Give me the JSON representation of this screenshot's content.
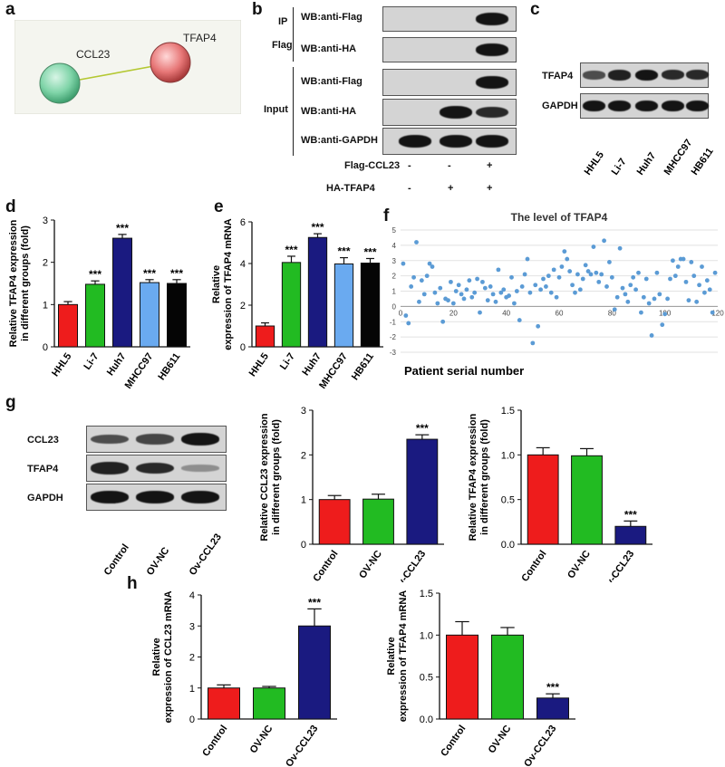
{
  "panel_letters": [
    "a",
    "b",
    "c",
    "d",
    "e",
    "f",
    "g",
    "h"
  ],
  "network": {
    "nodes": [
      "CCL23",
      "TFAP4"
    ]
  },
  "coip": {
    "group_labels": [
      "IP",
      "Flag",
      "Input"
    ],
    "rows": [
      "WB:anti-Flag",
      "WB:anti-HA",
      "WB:anti-Flag",
      "WB:anti-HA",
      "WB:anti-GAPDH"
    ],
    "conditions": [
      {
        "label": "Flag-CCL23",
        "values": [
          "-",
          "-",
          "+"
        ]
      },
      {
        "label": "HA-TFAP4",
        "values": [
          "-",
          "+",
          "+"
        ]
      }
    ],
    "band_levels": [
      [
        0,
        0,
        1
      ],
      [
        0,
        0,
        1
      ],
      [
        0,
        0,
        1
      ],
      [
        0,
        1,
        0.85
      ],
      [
        1,
        1,
        1
      ]
    ]
  },
  "blot_c": {
    "rows": [
      "TFAP4",
      "GAPDH"
    ],
    "lanes": [
      "HHL5",
      "Li-7",
      "Huh7",
      "MHCC97",
      "HB611"
    ],
    "band_levels": [
      [
        0.6,
        0.9,
        1,
        0.85,
        0.85
      ],
      [
        1,
        1,
        1,
        1,
        1
      ]
    ]
  },
  "blot_g": {
    "rows": [
      "CCL23",
      "TFAP4",
      "GAPDH"
    ],
    "lanes": [
      "Control",
      "OV-NC",
      "Ov-CCL23"
    ],
    "band_levels": [
      [
        0.6,
        0.65,
        1
      ],
      [
        0.9,
        0.85,
        0.15
      ],
      [
        1,
        1,
        1
      ]
    ]
  },
  "chart_data": [
    {
      "id": "d",
      "type": "bar",
      "categories": [
        "HHL5",
        "Li-7",
        "Huh7",
        "MHCC97",
        "HB611"
      ],
      "values": [
        1.0,
        1.48,
        2.57,
        1.52,
        1.5
      ],
      "errors": [
        0.07,
        0.08,
        0.09,
        0.07,
        0.09
      ],
      "significance": [
        "",
        "***",
        "***",
        "***",
        "***"
      ],
      "ylabel": "Relative TFAP4 expression in different groups (fold)",
      "ylim": [
        0,
        3
      ],
      "yticks": [
        "0",
        "1",
        "2",
        "3"
      ],
      "colors": [
        "#ee1c1c",
        "#22bb22",
        "#1a1a80",
        "#6aaaf0",
        "#050505"
      ]
    },
    {
      "id": "e",
      "type": "bar",
      "categories": [
        "HHL5",
        "Li-7",
        "Huh7",
        "MHCC97",
        "HB611"
      ],
      "values": [
        1.0,
        4.05,
        5.25,
        3.98,
        4.02
      ],
      "errors": [
        0.15,
        0.3,
        0.18,
        0.3,
        0.22
      ],
      "significance": [
        "",
        "***",
        "***",
        "***",
        "***"
      ],
      "ylabel": "Relative expression of TFAP4 mRNA",
      "ylim": [
        0,
        6
      ],
      "yticks": [
        "0",
        "2",
        "4",
        "6"
      ],
      "colors": [
        "#ee1c1c",
        "#22bb22",
        "#1a1a80",
        "#6aaaf0",
        "#050505"
      ]
    },
    {
      "id": "f",
      "type": "scatter",
      "title": "The level of TFAP4",
      "xlabel": "Patient serial number",
      "xlim": [
        0,
        120
      ],
      "ylim": [
        -3,
        5
      ],
      "xticks": [
        "0",
        "20",
        "40",
        "60",
        "80",
        "100",
        "120"
      ],
      "yticks": [
        "-3",
        "-2",
        "-1",
        "0",
        "1",
        "2",
        "3",
        "4",
        "5"
      ],
      "x": [
        1,
        2,
        3,
        4,
        5,
        6,
        7,
        8,
        9,
        10,
        11,
        12,
        13,
        14,
        15,
        16,
        17,
        18,
        19,
        20,
        21,
        22,
        23,
        24,
        25,
        26,
        27,
        28,
        29,
        30,
        31,
        32,
        33,
        34,
        35,
        36,
        37,
        38,
        39,
        40,
        41,
        42,
        43,
        44,
        45,
        46,
        47,
        48,
        49,
        50,
        51,
        52,
        53,
        54,
        55,
        56,
        57,
        58,
        59,
        60,
        61,
        62,
        63,
        64,
        65,
        66,
        67,
        68,
        69,
        70,
        71,
        72,
        73,
        74,
        75,
        76,
        77,
        78,
        79,
        80,
        81,
        82,
        83,
        84,
        85,
        86,
        87,
        88,
        89,
        90,
        91,
        92,
        93,
        94,
        95,
        96,
        97,
        98,
        99,
        100,
        101,
        102,
        103,
        104,
        105,
        106,
        107,
        108,
        109,
        110,
        111,
        112,
        113,
        114,
        115,
        116,
        117,
        118,
        119
      ],
      "y": [
        2.8,
        -0.6,
        -1.1,
        1.3,
        1.9,
        4.2,
        0.3,
        1.7,
        0.8,
        2.0,
        2.8,
        2.6,
        0.9,
        0.2,
        1.2,
        -1.0,
        0.5,
        0.4,
        1.6,
        0.2,
        1.0,
        1.4,
        0.8,
        0.5,
        1.1,
        1.7,
        0.6,
        0.9,
        1.8,
        -0.4,
        1.6,
        1.2,
        0.4,
        1.3,
        0.8,
        0.3,
        2.4,
        0.9,
        1.1,
        0.6,
        0.7,
        1.9,
        0.2,
        1.0,
        -0.9,
        1.3,
        2.1,
        3.1,
        0.9,
        -2.4,
        1.4,
        -1.3,
        1.1,
        1.8,
        1.3,
        2.0,
        0.9,
        2.4,
        0.6,
        1.9,
        2.6,
        3.6,
        3.1,
        2.3,
        1.4,
        0.9,
        2.1,
        1.1,
        1.8,
        2.7,
        2.3,
        2.1,
        3.9,
        2.2,
        1.6,
        2.1,
        4.3,
        1.3,
        2.9,
        1.9,
        -0.2,
        0.6,
        3.8,
        1.2,
        0.8,
        0.3,
        1.4,
        1.9,
        1.1,
        2.2,
        -0.4,
        0.6,
        1.8,
        0.2,
        -1.9,
        0.5,
        2.2,
        0.8,
        -1.2,
        -0.5,
        0.5,
        1.8,
        3.0,
        2.0,
        2.6,
        3.1,
        3.1,
        1.6,
        0.4,
        2.9,
        2.0,
        0.3,
        1.4,
        2.6,
        0.9,
        1.7,
        1.1,
        -0.4,
        2.2
      ],
      "color": "#5b9bd5"
    },
    {
      "id": "g2",
      "type": "bar",
      "categories": [
        "Control",
        "OV-NC",
        "Ov-CCL23"
      ],
      "values": [
        1.0,
        1.01,
        2.35
      ],
      "errors": [
        0.09,
        0.11,
        0.1
      ],
      "significance": [
        "",
        "",
        "***"
      ],
      "ylabel": "Relative CCL23 expression in different groups (fold)",
      "ylim": [
        0,
        3
      ],
      "yticks": [
        "0",
        "1",
        "2",
        "3"
      ],
      "colors": [
        "#ee1c1c",
        "#22bb22",
        "#1a1a80"
      ]
    },
    {
      "id": "g3",
      "type": "bar",
      "categories": [
        "Control",
        "OV-NC",
        "Ov-CCL23"
      ],
      "values": [
        1.0,
        0.99,
        0.2
      ],
      "errors": [
        0.08,
        0.08,
        0.06
      ],
      "significance": [
        "",
        "",
        "***"
      ],
      "ylabel": "Relative TFAP4 expression in different groups (fold)",
      "ylim": [
        0,
        1.5
      ],
      "yticks": [
        "0.0",
        "0.5",
        "1.0",
        "1.5"
      ],
      "colors": [
        "#ee1c1c",
        "#22bb22",
        "#1a1a80"
      ]
    },
    {
      "id": "h1",
      "type": "bar",
      "categories": [
        "Control",
        "OV-NC",
        "Ov-CCL23"
      ],
      "values": [
        1.0,
        1.0,
        3.0
      ],
      "errors": [
        0.1,
        0.05,
        0.55
      ],
      "significance": [
        "",
        "",
        "***"
      ],
      "ylabel": "Relative expression of CCL23 mRNA",
      "ylim": [
        0,
        4
      ],
      "yticks": [
        "0",
        "1",
        "2",
        "3",
        "4"
      ],
      "colors": [
        "#ee1c1c",
        "#22bb22",
        "#1a1a80"
      ]
    },
    {
      "id": "h2",
      "type": "bar",
      "categories": [
        "Control",
        "OV-NC",
        "Ov-CCL23"
      ],
      "values": [
        1.0,
        1.0,
        0.25
      ],
      "errors": [
        0.16,
        0.09,
        0.05
      ],
      "significance": [
        "",
        "",
        "***"
      ],
      "ylabel": "Relative expression of TFAP4 mRNA",
      "ylim": [
        0,
        1.5
      ],
      "yticks": [
        "0.0",
        "0.5",
        "1.0",
        "1.5"
      ],
      "colors": [
        "#ee1c1c",
        "#22bb22",
        "#1a1a80"
      ]
    }
  ]
}
